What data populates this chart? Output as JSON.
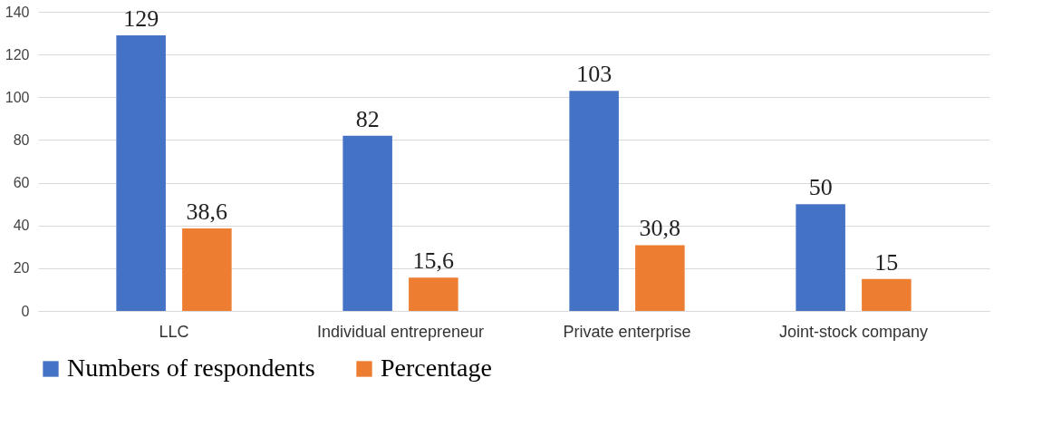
{
  "chart_data": {
    "type": "bar",
    "categories": [
      "LLC",
      "Individual entrepreneur",
      "Private enterprise",
      "Joint-stock company"
    ],
    "series": [
      {
        "name": "Numbers of respondents",
        "color": "#4472c4",
        "values": [
          129,
          82,
          103,
          50
        ],
        "value_labels": [
          "129",
          "82",
          "103",
          "50"
        ]
      },
      {
        "name": "Percentage",
        "color": "#ed7d31",
        "values": [
          38.6,
          15.6,
          30.8,
          15
        ],
        "value_labels": [
          "38,6",
          "15,6",
          "30,8",
          "15"
        ]
      }
    ],
    "ylim": [
      0,
      140
    ],
    "yticks": [
      0,
      20,
      40,
      60,
      80,
      100,
      120,
      140
    ],
    "grid": "y",
    "legend": "bottom"
  }
}
